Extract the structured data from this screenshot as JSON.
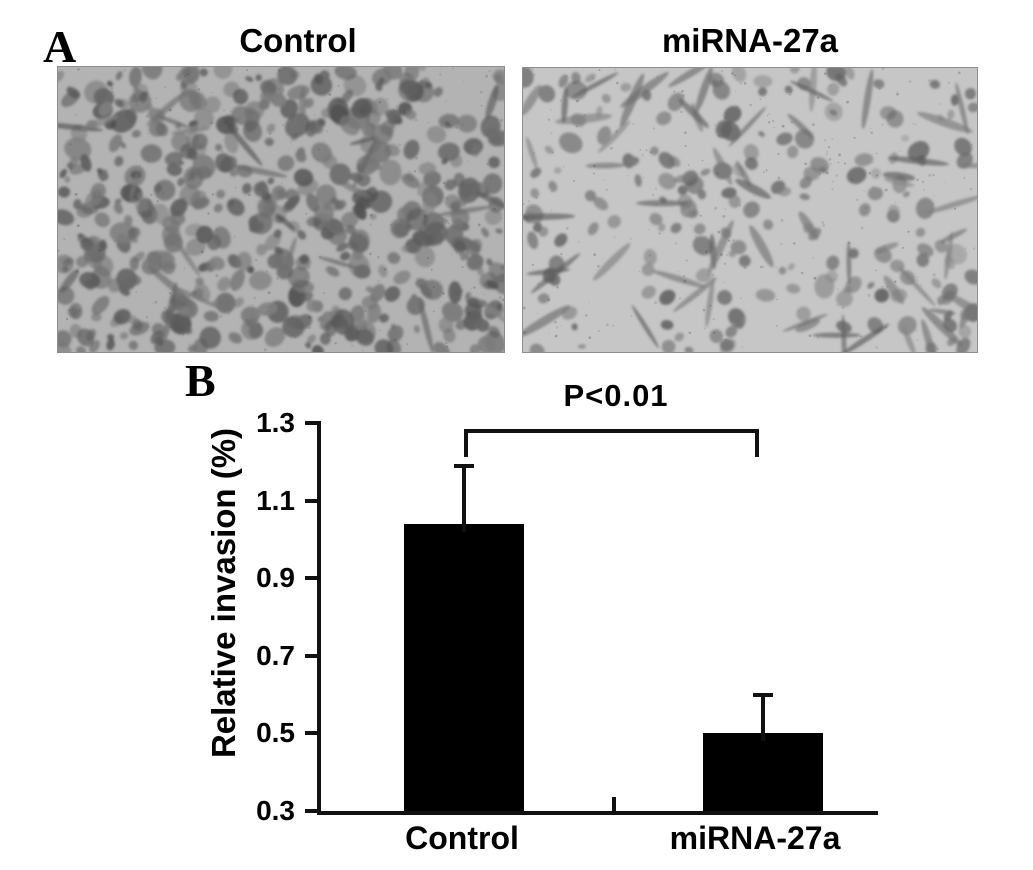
{
  "figure": {
    "panel_a": {
      "label": "A",
      "images": [
        {
          "name": "control-micrograph",
          "title": "Control",
          "appearance": "dense field of dark stained invaded cells on light gray membrane"
        },
        {
          "name": "mirna-27a-micrograph",
          "title": "miRNA-27a",
          "appearance": "sparse field of dark stained cells, many spindle-shaped, on lighter membrane"
        }
      ]
    },
    "panel_b": {
      "label": "B"
    }
  },
  "chart_data": {
    "type": "bar",
    "categories": [
      "Control",
      "miRNA-27a"
    ],
    "values": [
      1.04,
      0.5
    ],
    "errors": [
      0.15,
      0.1
    ],
    "title": "",
    "xlabel": "",
    "ylabel": "Relative invasion (%)",
    "ylim": [
      0.3,
      1.3
    ],
    "yticks": [
      0.3,
      0.5,
      0.7,
      0.9,
      1.1,
      1.3
    ],
    "bar_color": "#000000",
    "axis_color": "#111111",
    "grid": false,
    "legend": null,
    "annotation": {
      "text": "P<0.01",
      "between": [
        "Control",
        "miRNA-27a"
      ]
    }
  }
}
